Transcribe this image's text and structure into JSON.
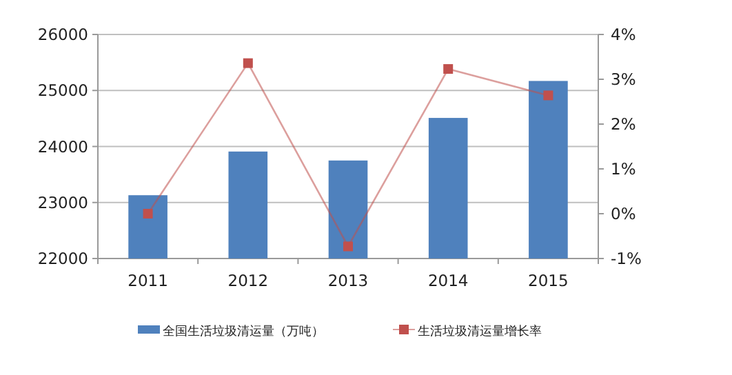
{
  "chart_data": {
    "type": "bar",
    "categories": [
      "2011",
      "2012",
      "2013",
      "2014",
      "2015"
    ],
    "series": [
      {
        "name": "全国生活垃圾清运量（万吨）",
        "color": "#4f81bd",
        "values": [
          23130,
          23910,
          23750,
          24510,
          25170
        ]
      },
      {
        "name": "生活垃圾清运量增长率",
        "type": "line",
        "axis": "y2",
        "color": "#c0504d",
        "marker": "square",
        "values": [
          0,
          3.36,
          -0.73,
          3.23,
          2.64
        ]
      }
    ],
    "ylim": [
      22000,
      26000
    ],
    "yticks": [
      22000,
      23000,
      24000,
      25000,
      26000
    ],
    "y2lim": [
      -1,
      4
    ],
    "y2ticks": [
      {
        "value": -1,
        "label": "-1%"
      },
      {
        "value": 0,
        "label": "0%"
      },
      {
        "value": 1,
        "label": "1%"
      },
      {
        "value": 2,
        "label": "2%"
      },
      {
        "value": 3,
        "label": "3%"
      },
      {
        "value": 4,
        "label": "4%"
      }
    ],
    "grid": "y",
    "legend": "bottom"
  }
}
